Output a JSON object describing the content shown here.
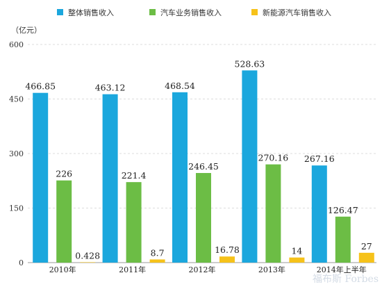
{
  "chart_data": {
    "type": "bar",
    "unit": "（亿元）",
    "categories": [
      "2010年",
      "2011年",
      "2012年",
      "2013年",
      "2014年上半年"
    ],
    "series": [
      {
        "name": "整体销售收入",
        "color": "#1ba7dd",
        "values": [
          466.85,
          463.12,
          468.54,
          528.63,
          267.16
        ],
        "labels": [
          "466.85",
          "463.12",
          "468.54",
          "528.63",
          "267.16"
        ]
      },
      {
        "name": "汽车业务销售收入",
        "color": "#6cbd45",
        "values": [
          226,
          221.4,
          246.45,
          270.16,
          126.47
        ],
        "labels": [
          "226",
          "221.4",
          "246.45",
          "270.16",
          "126.47"
        ]
      },
      {
        "name": "新能源汽车销售收入",
        "color": "#f6c21a",
        "values": [
          0.428,
          8.7,
          16.78,
          14,
          27
        ],
        "labels": [
          "0.428",
          "8.7",
          "16.78",
          "14",
          "27"
        ]
      }
    ],
    "ylim": [
      0,
      600
    ],
    "yticks": [
      0,
      150,
      300,
      450,
      600
    ],
    "grid": true,
    "legend_position": "top"
  },
  "watermark": "福布斯 Forbes"
}
